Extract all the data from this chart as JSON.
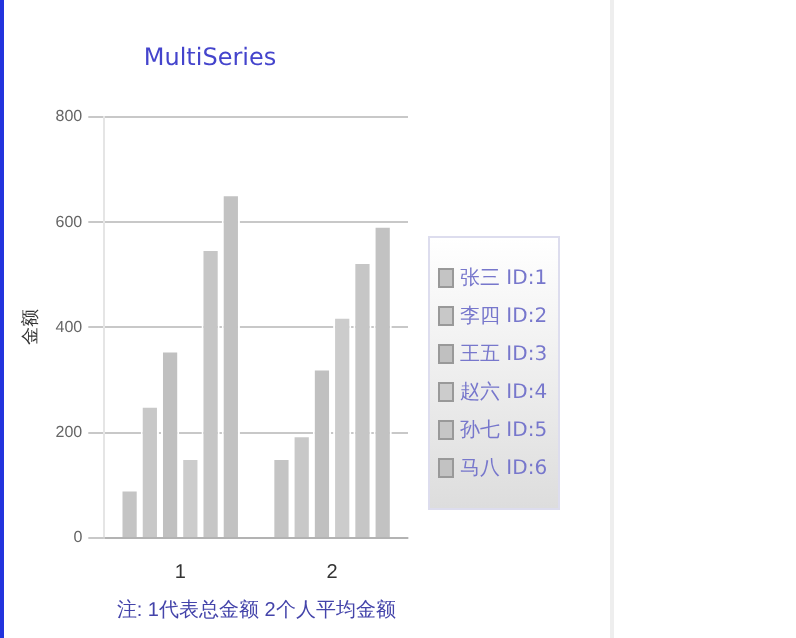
{
  "chart_data": {
    "type": "bar",
    "title": "MultiSeries",
    "xlabel": "注: 1代表总金额 2个人平均金额",
    "ylabel": "金额",
    "categories": [
      "1",
      "2"
    ],
    "series": [
      {
        "name": "张三 ID:1",
        "color": "#c4c4c4",
        "values": [
          92,
          152
        ]
      },
      {
        "name": "李四 ID:2",
        "color": "#c8c8c8",
        "values": [
          251,
          195
        ]
      },
      {
        "name": "王五 ID:3",
        "color": "#c0c0c0",
        "values": [
          356,
          322
        ]
      },
      {
        "name": "赵六 ID:4",
        "color": "#cccccc",
        "values": [
          152,
          420
        ]
      },
      {
        "name": "孙七 ID:5",
        "color": "#c6c6c6",
        "values": [
          549,
          524
        ]
      },
      {
        "name": "马八 ID:6",
        "color": "#c2c2c2",
        "values": [
          653,
          593
        ]
      }
    ],
    "ylim": [
      0,
      800
    ],
    "yticks": [
      0,
      200,
      400,
      600,
      800
    ],
    "grid": "y",
    "legend": "right"
  }
}
